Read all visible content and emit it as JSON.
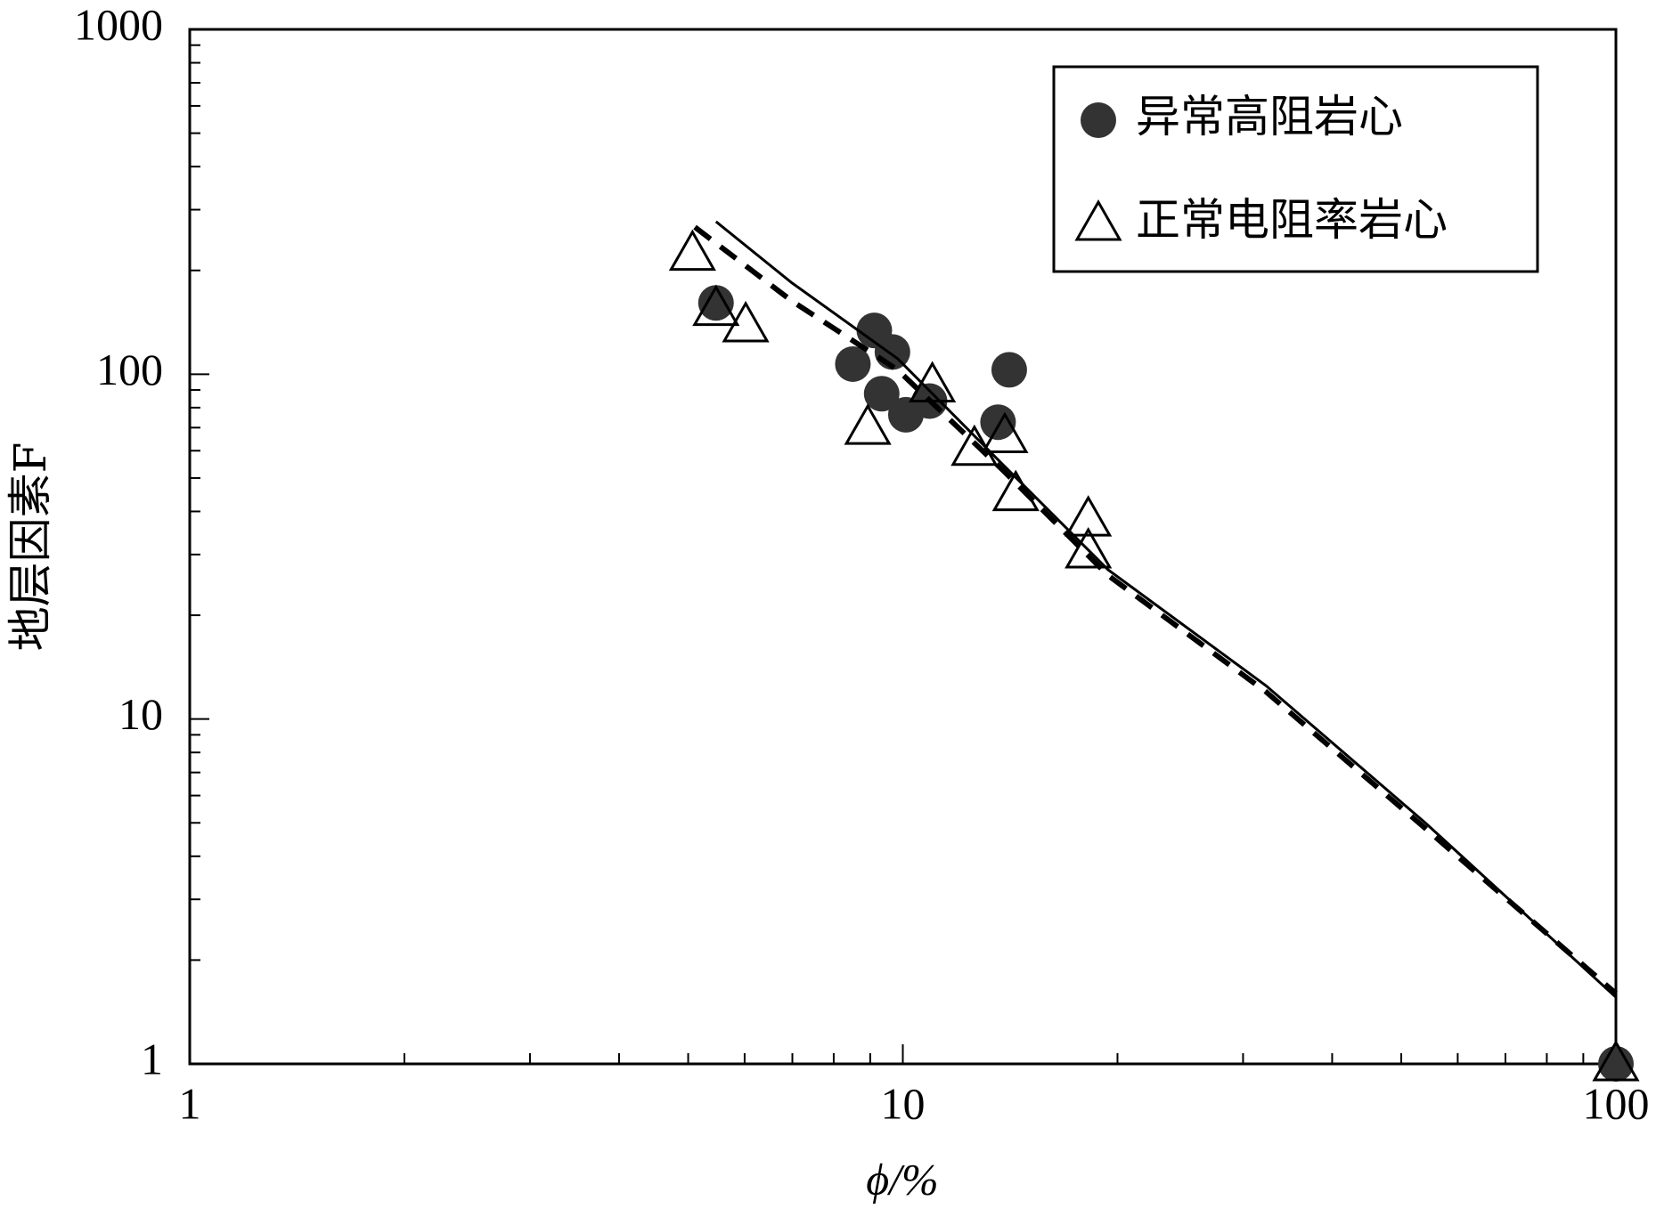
{
  "chart_data": {
    "type": "scatter",
    "x_label": "ϕ/%",
    "y_label": "地层因素F",
    "xscale": "log",
    "yscale": "log",
    "xlim": [
      1,
      100
    ],
    "ylim": [
      1,
      1000
    ],
    "xticks": [
      1,
      10,
      100
    ],
    "yticks": [
      1,
      10,
      100,
      1000
    ],
    "legend": "upper right",
    "series": [
      {
        "name": "异常高阻岩心",
        "marker": "circle",
        "color": "#333333",
        "x": [
          5.47,
          8.51,
          9.12,
          9.67,
          9.34,
          10.1,
          10.9,
          13.6,
          14.1,
          100
        ],
        "values": [
          161,
          107,
          134,
          116,
          87.8,
          76.3,
          83.6,
          72.6,
          103,
          1
        ]
      },
      {
        "name": "正常电阻率岩心",
        "marker": "triangle",
        "color": "#000000",
        "x": [
          5.07,
          5.47,
          6.02,
          8.93,
          11.0,
          12.6,
          13.9,
          14.4,
          18.2,
          18.2,
          100
        ],
        "values": [
          224,
          155,
          139,
          70.1,
          93,
          60.9,
          66.3,
          45,
          38,
          30.7,
          1
        ]
      },
      {
        "marker": "line",
        "linestyle": "solid",
        "color": "#000000",
        "x": [
          5.47,
          6.99,
          9.83,
          13.8,
          19.4,
          32.3,
          54.1,
          100
        ],
        "values": [
          277,
          184,
          111,
          54.8,
          27.1,
          12.5,
          4.99,
          1.56
        ]
      },
      {
        "marker": "line",
        "linestyle": "dashed",
        "color": "#000000",
        "x": [
          5.11,
          6.99,
          9.83,
          13.8,
          19.4,
          32.3,
          54.1,
          100
        ],
        "values": [
          267,
          163,
          103,
          52.8,
          26.1,
          12.0,
          4.81,
          1.6
        ]
      }
    ]
  }
}
